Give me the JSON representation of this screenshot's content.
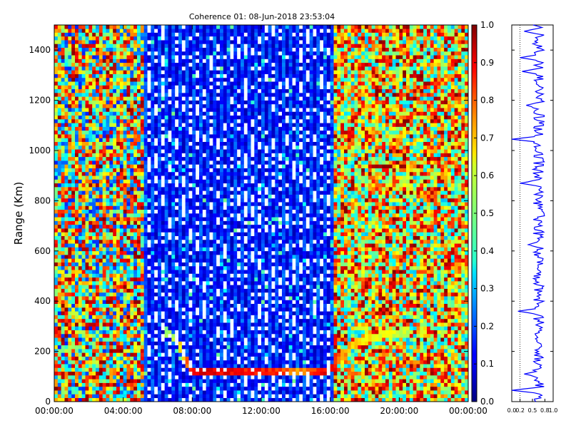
{
  "chart_data": [
    {
      "type": "heatmap",
      "title": "Coherence 01: 08-Jun-2018 23:53:04",
      "ylabel": "Range (Km)",
      "xlabel": "",
      "x_tick_labels": [
        "00:00:00",
        "04:00:00",
        "08:00:00",
        "12:00:00",
        "16:00:00",
        "20:00:00",
        "00:00:00"
      ],
      "x_range_hours": [
        0,
        24
      ],
      "y_ticks": [
        0,
        200,
        400,
        600,
        800,
        1000,
        1200,
        1400
      ],
      "ylim": [
        0,
        1500
      ],
      "colorbar": {
        "colormap": "jet",
        "range": [
          0.0,
          1.0
        ],
        "tick_labels": [
          "0.0",
          "0.1",
          "0.2",
          "0.3",
          "0.4",
          "0.5",
          "0.6",
          "0.7",
          "0.8",
          "0.9",
          "1.0"
        ]
      },
      "regions": [
        {
          "hours": [
            0,
            5.2
          ],
          "range_km": [
            0,
            1500
          ],
          "coherence": "random 0.1-1.0 (noise)"
        },
        {
          "hours": [
            5.2,
            16.1
          ],
          "range_km": [
            0,
            1500
          ],
          "coherence": "low 0.05-0.25, alternating vertical stripes"
        },
        {
          "hours": [
            16.1,
            24
          ],
          "range_km": [
            0,
            1500
          ],
          "coherence": "random 0.3-1.0 (noise)"
        }
      ],
      "echo_layer": [
        {
          "hour": 6.5,
          "range_km": 280,
          "coherence": 0.55
        },
        {
          "hour": 7.2,
          "range_km": 235,
          "coherence": 0.65
        },
        {
          "hour": 7.8,
          "range_km": 140,
          "coherence": 0.85
        },
        {
          "hour": 8.0,
          "range_km": 125,
          "coherence": 0.95
        },
        {
          "hour": 9.0,
          "range_km": 120,
          "coherence": 0.95
        },
        {
          "hour": 10.0,
          "range_km": 118,
          "coherence": 0.92
        },
        {
          "hour": 11.0,
          "range_km": 118,
          "coherence": 0.9
        },
        {
          "hour": 12.0,
          "range_km": 118,
          "coherence": 0.9
        },
        {
          "hour": 13.0,
          "range_km": 118,
          "coherence": 0.88
        },
        {
          "hour": 14.0,
          "range_km": 120,
          "coherence": 0.75
        },
        {
          "hour": 15.0,
          "range_km": 122,
          "coherence": 0.85
        },
        {
          "hour": 16.0,
          "range_km": 125,
          "coherence": 0.95
        },
        {
          "hour": 16.5,
          "range_km": 175,
          "coherence": 0.8
        },
        {
          "hour": 17.5,
          "range_km": 235,
          "coherence": 0.7
        },
        {
          "hour": 19.0,
          "range_km": 265,
          "coherence": 0.65
        },
        {
          "hour": 20.5,
          "range_km": 280,
          "coherence": 0.6
        }
      ]
    },
    {
      "type": "line",
      "title": "",
      "x_tick_labels": [
        "0.0",
        "0.2",
        "0.5",
        "0.8",
        "1.0"
      ],
      "xlim": [
        0.0,
        1.0
      ],
      "ylim": [
        0,
        1500
      ],
      "reference_line_x": 0.2,
      "mean_coherence": 0.65,
      "dips": [
        {
          "range_km": 45,
          "value": 0.0
        },
        {
          "range_km": 110,
          "value": 0.3
        },
        {
          "range_km": 360,
          "value": 0.15
        },
        {
          "range_km": 625,
          "value": 0.4
        },
        {
          "range_km": 870,
          "value": 0.2
        },
        {
          "range_km": 1045,
          "value": 0.0
        },
        {
          "range_km": 1180,
          "value": 0.35
        },
        {
          "range_km": 1315,
          "value": 0.25
        },
        {
          "range_km": 1370,
          "value": 0.2
        },
        {
          "range_km": 1475,
          "value": 0.3
        }
      ]
    }
  ]
}
